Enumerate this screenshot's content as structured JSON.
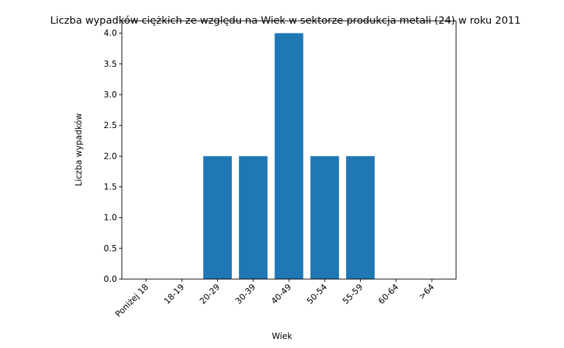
{
  "chart_data": {
    "type": "bar",
    "title": "Liczba wypadków ciężkich ze względu na Wiek w sektorze produkcja metali (24)   w roku 2011",
    "xlabel": "Wiek",
    "ylabel": "Liczba wypadków",
    "categories": [
      "Poniżej 18",
      "18-19",
      "20-29",
      "30-39",
      "40-49",
      "50-54",
      "55-59",
      "60-64",
      ">64"
    ],
    "values": [
      0,
      0,
      2,
      2,
      4,
      2,
      2,
      0,
      0
    ],
    "ylim": [
      0,
      4.2
    ],
    "yticks": [
      "0.0",
      "0.5",
      "1.0",
      "1.5",
      "2.0",
      "2.5",
      "3.0",
      "3.5",
      "4.0"
    ],
    "bar_color": "#1f77b4",
    "grid": false,
    "legend": "none"
  }
}
